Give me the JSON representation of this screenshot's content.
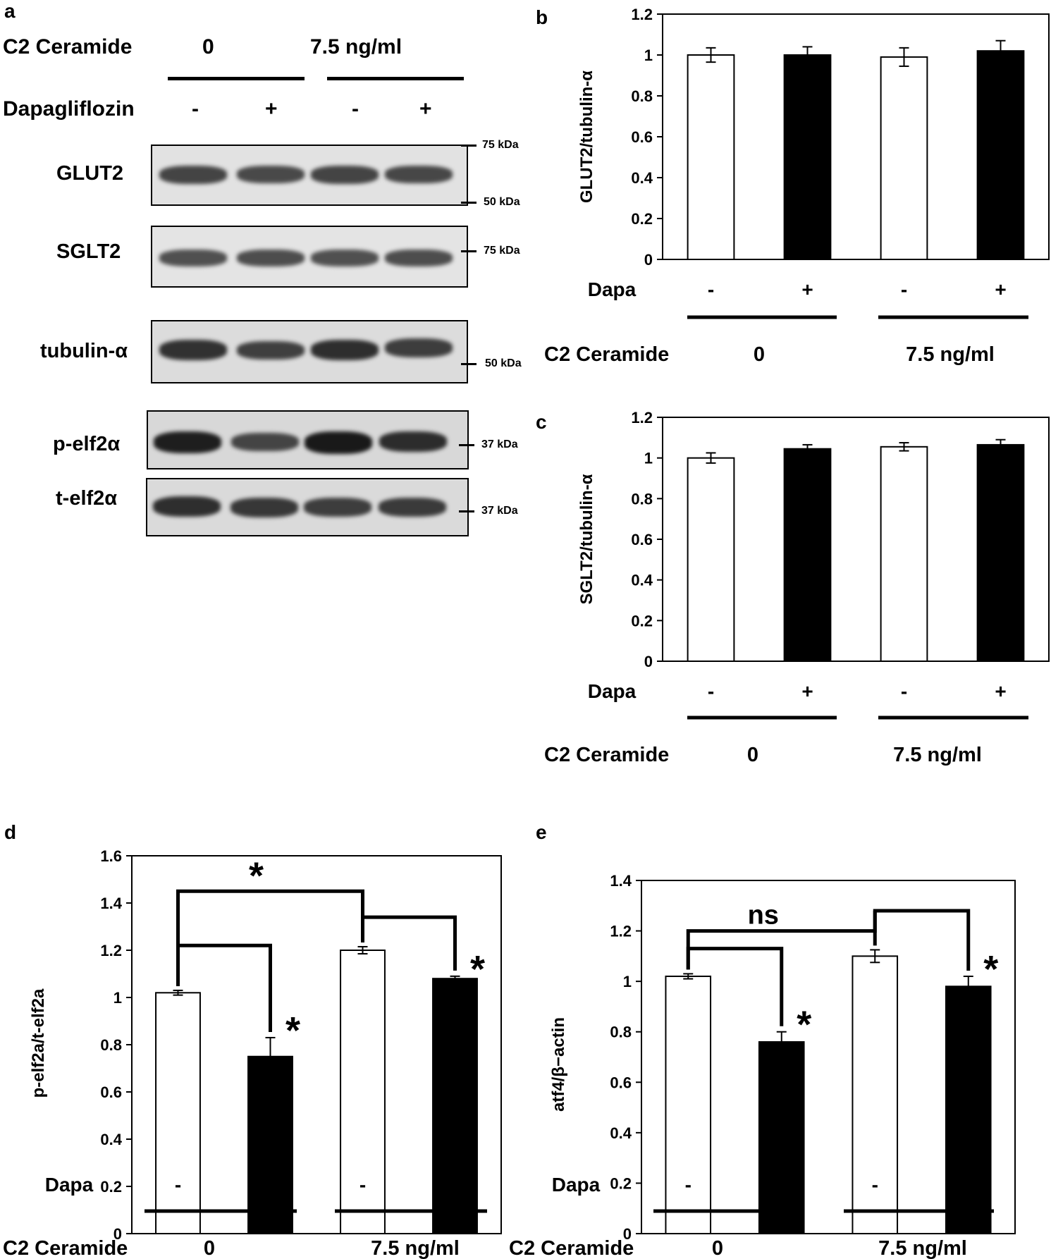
{
  "panels": {
    "a": "a",
    "b": "b",
    "c": "c",
    "d": "d",
    "e": "e"
  },
  "blot": {
    "c2_label": "C2 Ceramide",
    "c2_zero": "0",
    "c2_dose": "7.5 ng/ml",
    "dapa_label": "Dapagliflozin",
    "lane_signs": [
      "-",
      "+",
      "-",
      "+"
    ],
    "rows": [
      {
        "label": "GLUT2",
        "markers": [
          "75 kDa",
          "50 kDa"
        ],
        "intensities": [
          0.55,
          0.5,
          0.55,
          0.52
        ]
      },
      {
        "label": "SGLT2",
        "markers": [
          "75 kDa"
        ],
        "intensities": [
          0.42,
          0.45,
          0.42,
          0.45
        ]
      },
      {
        "label": "tubulin-α",
        "markers": [
          "50 kDa"
        ],
        "intensities": [
          0.75,
          0.6,
          0.78,
          0.62
        ]
      },
      {
        "label": "p-elf2α",
        "markers": [
          "37 kDa"
        ],
        "intensities": [
          0.95,
          0.55,
          1.0,
          0.8
        ]
      },
      {
        "label": "t-elf2α",
        "markers": [
          "37 kDa"
        ],
        "intensities": [
          0.78,
          0.68,
          0.62,
          0.65
        ]
      }
    ]
  },
  "chart_data": [
    {
      "id": "b",
      "type": "bar",
      "ylabel": "GLUT2/tubulin-α",
      "ylim": [
        0,
        1.2
      ],
      "yticks": [
        "0",
        "0.2",
        "0.4",
        "0.6",
        "0.8",
        "1",
        "1.2"
      ],
      "categories": [
        "-",
        "+",
        "-",
        "+"
      ],
      "row_label": "Dapa",
      "group_label": "C2 Ceramide",
      "groups": [
        "0",
        "7.5 ng/ml"
      ],
      "values": [
        1.0,
        1.0,
        0.99,
        1.02
      ],
      "errors": [
        0.035,
        0.04,
        0.045,
        0.05
      ],
      "fills": [
        "#ffffff",
        "#000000",
        "#ffffff",
        "#000000"
      ]
    },
    {
      "id": "c",
      "type": "bar",
      "ylabel": "SGLT2/tubulin-α",
      "ylim": [
        0,
        1.2
      ],
      "yticks": [
        "0",
        "0.2",
        "0.4",
        "0.6",
        "0.8",
        "1",
        "1.2"
      ],
      "categories": [
        "-",
        "+",
        "-",
        "+"
      ],
      "row_label": "Dapa",
      "group_label": "C2 Ceramide",
      "groups": [
        "0",
        "7.5 ng/ml"
      ],
      "values": [
        1.0,
        1.045,
        1.055,
        1.065
      ],
      "errors": [
        0.025,
        0.02,
        0.02,
        0.025
      ],
      "fills": [
        "#ffffff",
        "#000000",
        "#ffffff",
        "#000000"
      ]
    },
    {
      "id": "d",
      "type": "bar",
      "ylabel": "p-elf2a/t-elf2a",
      "ylim": [
        0,
        1.6
      ],
      "yticks": [
        "0",
        "0.2",
        "0.4",
        "0.6",
        "0.8",
        "1",
        "1.2",
        "1.4",
        "1.6"
      ],
      "categories": [
        "-",
        "+",
        "-",
        "+"
      ],
      "row_label": "Dapa",
      "group_label": "C2 Ceramide",
      "groups": [
        "0",
        "7.5 ng/ml"
      ],
      "values": [
        1.02,
        0.75,
        1.2,
        1.08
      ],
      "errors": [
        0.01,
        0.08,
        0.015,
        0.01
      ],
      "fills": [
        "#ffffff",
        "#000000",
        "#ffffff",
        "#000000"
      ],
      "annotations": [
        {
          "type": "bracket",
          "from": 0,
          "to": 1,
          "level": 1.22,
          "label": "*",
          "label_at": "right"
        },
        {
          "type": "bracket",
          "from": 2,
          "to": 3,
          "level": 1.34,
          "label": "*",
          "label_at": "right"
        },
        {
          "type": "group-bracket",
          "from": [
            0,
            2
          ],
          "level": 1.45,
          "label": "*",
          "label_at": "top"
        }
      ]
    },
    {
      "id": "e",
      "type": "bar",
      "ylabel": "atf4/β−actin",
      "ylim": [
        0,
        1.4
      ],
      "yticks": [
        "0",
        "0.2",
        "0.4",
        "0.6",
        "0.8",
        "1",
        "1.2",
        "1.4"
      ],
      "categories": [
        "-",
        "+",
        "-",
        "+"
      ],
      "row_label": "Dapa",
      "group_label": "C2 Ceramide",
      "groups": [
        "0",
        "7.5 ng/ml"
      ],
      "values": [
        1.02,
        0.76,
        1.1,
        0.98
      ],
      "errors": [
        0.01,
        0.04,
        0.025,
        0.04
      ],
      "fills": [
        "#ffffff",
        "#000000",
        "#ffffff",
        "#000000"
      ],
      "annotations": [
        {
          "type": "bracket",
          "from": 0,
          "to": 1,
          "level": 1.13,
          "label": "*",
          "label_at": "right"
        },
        {
          "type": "bracket",
          "from": 2,
          "to": 3,
          "level": 1.28,
          "label": "*",
          "label_at": "right"
        },
        {
          "type": "group-bracket",
          "from": [
            0,
            2
          ],
          "level": 1.2,
          "label": "ns",
          "label_at": "top"
        }
      ]
    }
  ]
}
